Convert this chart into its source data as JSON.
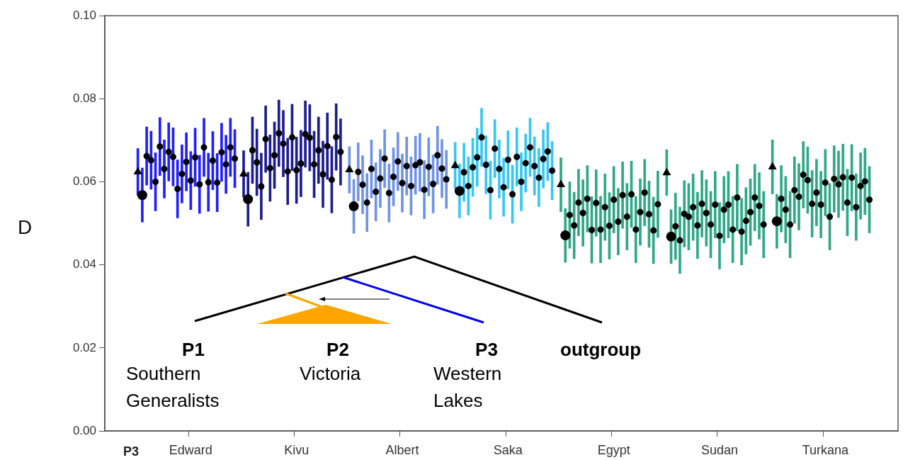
{
  "chart_data": {
    "type": "scatter",
    "xlabel": "P3",
    "ylabel": "D",
    "categories": [
      null,
      null,
      null,
      null,
      null,
      null,
      null,
      null,
      null,
      null,
      null,
      null,
      null,
      null,
      null,
      null,
      null,
      null,
      null,
      "Edward",
      null,
      null,
      null,
      null,
      null,
      null,
      null,
      null,
      null,
      null,
      null,
      null,
      null,
      null,
      null,
      null,
      null,
      null,
      null,
      null,
      null,
      null,
      null,
      "Kivu",
      null,
      null,
      null,
      null,
      null,
      null,
      null,
      null,
      null,
      null,
      null,
      null,
      null,
      null,
      null,
      null,
      null,
      null,
      null,
      null,
      null,
      null,
      null,
      "Albert",
      null,
      null,
      null,
      null,
      null,
      null,
      null,
      null,
      null,
      null,
      null,
      null,
      null,
      null,
      null,
      null,
      null,
      null,
      null,
      null,
      null,
      null,
      null,
      "Saka",
      null,
      null,
      null,
      null,
      null,
      null,
      null,
      null,
      null,
      null,
      null,
      null,
      null,
      null,
      null,
      null,
      null,
      null,
      null,
      null,
      null,
      null,
      null,
      "Egypt",
      null,
      null,
      null,
      null,
      null,
      null,
      null,
      null,
      null,
      null,
      null,
      null,
      null,
      null,
      null,
      null,
      null,
      null,
      null,
      null,
      null,
      null,
      null,
      "Sudan",
      null,
      null,
      null,
      null,
      null,
      null,
      null,
      null,
      null,
      null,
      null,
      null,
      null,
      null,
      null,
      null,
      null,
      null,
      null,
      null,
      null,
      null,
      null,
      "Turkana",
      null,
      null,
      null,
      null,
      null,
      null,
      null,
      null,
      null,
      null,
      null,
      null,
      null,
      null,
      null,
      null
    ],
    "ylim": [
      0,
      0.1
    ],
    "yticks": [
      {
        "value": 0,
        "label": "0.00"
      },
      {
        "value": 0.02,
        "label": "0.02"
      },
      {
        "value": 0.04,
        "label": "0.04"
      },
      {
        "value": 0.06,
        "label": "0.06"
      },
      {
        "value": 0.08,
        "label": "0.08"
      },
      {
        "value": 0.1,
        "label": "0.10"
      }
    ],
    "grid": false,
    "legend": false,
    "marker": "circle",
    "series": [
      {
        "color": "#000000",
        "values": [
          null,
          null,
          null,
          null,
          null,
          null,
          null,
          null,
          null,
          0.0662,
          0.0652,
          0.06,
          0.0685,
          0.0631,
          0.0672,
          0.066,
          0.0583,
          0.0619,
          0.0648,
          0.0603,
          0.0659,
          0.0594,
          0.0683,
          0.0599,
          0.0651,
          0.0598,
          0.0671,
          0.0642,
          0.0683,
          0.0656,
          null,
          null,
          null,
          0.0676,
          0.0647,
          0.0589,
          0.0703,
          0.0633,
          0.0664,
          0.0717,
          0.0692,
          0.0625,
          0.0707,
          0.0628,
          0.0644,
          0.0715,
          0.0706,
          0.0642,
          0.0676,
          0.0618,
          0.0686,
          0.0605,
          0.0708,
          0.0672,
          null,
          null,
          null,
          0.0624,
          0.0593,
          0.055,
          0.0631,
          0.0576,
          0.0608,
          0.0656,
          0.0573,
          0.0612,
          0.0649,
          0.0597,
          0.0638,
          0.059,
          0.064,
          0.0647,
          0.0581,
          0.0636,
          0.0595,
          0.0664,
          0.0632,
          0.0606,
          null,
          null,
          null,
          0.0623,
          0.059,
          0.0635,
          0.0659,
          0.0707,
          0.0641,
          0.058,
          0.068,
          0.0631,
          0.0587,
          0.0653,
          0.057,
          0.066,
          0.06,
          0.0645,
          0.0683,
          0.0638,
          0.061,
          0.0655,
          0.0673,
          0.0627,
          null,
          null,
          null,
          0.052,
          0.0495,
          0.055,
          0.0525,
          0.0559,
          0.0484,
          0.0549,
          0.0485,
          0.0539,
          0.0494,
          0.0557,
          0.0504,
          0.0568,
          0.0516,
          0.057,
          0.0485,
          0.0527,
          0.0574,
          0.0522,
          0.0483,
          0.0546,
          null,
          null,
          null,
          0.0493,
          0.0459,
          0.0523,
          0.0516,
          0.0539,
          0.0495,
          0.0547,
          0.0525,
          0.0497,
          0.0545,
          0.047,
          0.0533,
          0.0545,
          0.0485,
          0.0562,
          0.048,
          0.0506,
          0.0527,
          0.0562,
          0.0542,
          0.0497,
          null,
          null,
          null,
          0.0559,
          0.0533,
          0.0497,
          0.058,
          0.0564,
          0.0617,
          0.0604,
          0.0547,
          0.0574,
          0.0545,
          0.0598,
          0.0516,
          0.0607,
          0.0594,
          0.0611,
          0.055,
          0.061,
          0.0539,
          0.059,
          0.0601,
          0.0557,
          null,
          null,
          null,
          null,
          null,
          null
        ]
      },
      {
        "color": "#000000",
        "marker": "triangle",
        "values": [
          null,
          null,
          null,
          null,
          null,
          null,
          null,
          0.0624,
          null,
          null,
          null,
          null,
          null,
          null,
          null,
          null,
          null,
          null,
          null,
          null,
          null,
          null,
          null,
          null,
          null,
          null,
          null,
          null,
          null,
          null,
          null,
          0.0619,
          null,
          null,
          null,
          null,
          null,
          null,
          null,
          null,
          null,
          null,
          null,
          null,
          null,
          null,
          null,
          null,
          null,
          null,
          null,
          null,
          null,
          null,
          null,
          0.0629,
          null,
          null,
          null,
          null,
          null,
          null,
          null,
          null,
          null,
          null,
          null,
          null,
          null,
          null,
          null,
          null,
          null,
          null,
          null,
          null,
          null,
          null,
          null,
          0.0639,
          null,
          null,
          null,
          null,
          null,
          null,
          null,
          null,
          null,
          null,
          null,
          null,
          null,
          null,
          null,
          null,
          null,
          null,
          null,
          null,
          null,
          null,
          null,
          0.0593,
          null,
          null,
          null,
          null,
          null,
          null,
          null,
          null,
          null,
          null,
          null,
          null,
          null,
          null,
          null,
          null,
          null,
          null,
          null,
          null,
          null,
          null,
          null,
          0.0622,
          null,
          null,
          null,
          null,
          null,
          null,
          null,
          null,
          null,
          null,
          null,
          null,
          null,
          null,
          null,
          null,
          null,
          null,
          null,
          null,
          null,
          null,
          null,
          0.0636,
          null,
          null,
          null,
          null,
          null,
          null,
          null,
          null,
          null,
          null,
          null,
          null,
          null,
          null,
          null,
          null,
          null,
          null,
          null,
          null,
          null,
          null,
          null,
          null,
          null,
          null,
          null,
          null
        ]
      },
      {
        "color": "#000000",
        "marker": "circle",
        "values": [
          null,
          null,
          null,
          null,
          null,
          null,
          null,
          null,
          0.0568,
          null,
          null,
          null,
          null,
          null,
          null,
          null,
          null,
          null,
          null,
          null,
          null,
          null,
          null,
          null,
          null,
          null,
          null,
          null,
          null,
          null,
          null,
          null,
          0.0558,
          null,
          null,
          null,
          null,
          null,
          null,
          null,
          null,
          null,
          null,
          null,
          null,
          null,
          null,
          null,
          null,
          null,
          null,
          null,
          null,
          null,
          null,
          null,
          0.0541,
          null,
          null,
          null,
          null,
          null,
          null,
          null,
          null,
          null,
          null,
          null,
          null,
          null,
          null,
          null,
          null,
          null,
          null,
          null,
          null,
          null,
          null,
          null,
          0.0578,
          null,
          null,
          null,
          null,
          null,
          null,
          null,
          null,
          null,
          null,
          null,
          null,
          null,
          null,
          null,
          null,
          null,
          null,
          null,
          null,
          null,
          null,
          null,
          0.0471,
          null,
          null,
          null,
          null,
          null,
          null,
          null,
          null,
          null,
          null,
          null,
          null,
          null,
          null,
          null,
          null,
          null,
          null,
          null,
          null,
          null,
          null,
          null,
          0.0468,
          null,
          null,
          null,
          null,
          null,
          null,
          null,
          null,
          null,
          null,
          null,
          null,
          null,
          null,
          null,
          null,
          null,
          null,
          null,
          null,
          null,
          null,
          null,
          0.0505,
          null,
          null,
          null,
          null,
          null,
          null,
          null,
          null,
          null,
          null,
          null,
          null,
          null,
          null,
          null,
          null,
          null,
          null,
          null,
          null,
          null,
          null,
          null,
          null,
          null,
          null,
          null
        ]
      },
      {
        "type": "bar",
        "base": [
          null,
          null,
          null,
          null,
          null,
          null,
          null,
          0.0568,
          0.0503,
          0.0592,
          0.0582,
          0.053,
          0.0615,
          0.0561,
          0.0602,
          0.059,
          0.0513,
          0.0549,
          0.0578,
          0.0533,
          0.0589,
          0.0524,
          0.0613,
          0.0529,
          0.0581,
          0.0528,
          0.0601,
          0.0572,
          0.0613,
          0.0586,
          null,
          0.0563,
          0.0493,
          0.0596,
          0.0567,
          0.0509,
          0.0623,
          0.0553,
          0.0584,
          0.0637,
          0.0612,
          0.0545,
          0.0627,
          0.0548,
          0.0564,
          0.0635,
          0.0626,
          0.0562,
          0.0596,
          0.0538,
          0.0606,
          0.0525,
          0.0628,
          0.0592,
          null,
          0.0573,
          0.0476,
          0.0554,
          0.0523,
          0.048,
          0.0561,
          0.0506,
          0.0538,
          0.0586,
          0.0503,
          0.0542,
          0.0579,
          0.0527,
          0.0568,
          0.052,
          0.057,
          0.0577,
          0.0511,
          0.0566,
          0.0525,
          0.0594,
          0.0562,
          0.0536,
          null,
          0.0583,
          0.0513,
          0.0553,
          0.052,
          0.0565,
          0.0589,
          0.0637,
          0.0571,
          0.051,
          0.061,
          0.0561,
          0.0517,
          0.0583,
          0.05,
          0.059,
          0.053,
          0.0575,
          0.0613,
          0.0568,
          0.054,
          0.0585,
          0.0603,
          0.0557,
          null,
          0.0528,
          0.0406,
          0.044,
          0.0415,
          0.047,
          0.0445,
          0.0479,
          0.0404,
          0.0469,
          0.0405,
          0.0459,
          0.0414,
          0.0477,
          0.0424,
          0.0488,
          0.0436,
          0.049,
          0.0405,
          0.0447,
          0.0494,
          0.0442,
          0.0403,
          0.0466,
          null,
          0.0567,
          0.0403,
          0.0413,
          0.0379,
          0.0443,
          0.0436,
          0.0459,
          0.0415,
          0.0467,
          0.0445,
          0.0417,
          0.0465,
          0.039,
          0.0453,
          0.0465,
          0.0405,
          0.0482,
          0.04,
          0.0426,
          0.0447,
          0.0482,
          0.0462,
          0.0417,
          null,
          0.0571,
          0.044,
          0.0479,
          0.0453,
          0.0417,
          0.05,
          0.0484,
          0.0537,
          0.0524,
          0.0467,
          0.0494,
          0.0465,
          0.0518,
          0.0436,
          0.0527,
          0.0514,
          0.0531,
          0.047,
          0.053,
          0.0459,
          0.051,
          0.0521,
          0.0477,
          null,
          null,
          null,
          null,
          null,
          null
        ],
        "values": [
          null,
          null,
          null,
          null,
          null,
          null,
          null,
          0.0112,
          0.013,
          0.014,
          0.014,
          0.014,
          0.014,
          0.014,
          0.014,
          0.014,
          0.014,
          0.014,
          0.014,
          0.014,
          0.014,
          0.014,
          0.014,
          0.014,
          0.014,
          0.014,
          0.014,
          0.014,
          0.014,
          0.014,
          null,
          0.0112,
          0.013,
          0.016,
          0.016,
          0.016,
          0.016,
          0.016,
          0.016,
          0.016,
          0.016,
          0.016,
          0.016,
          0.016,
          0.016,
          0.016,
          0.016,
          0.016,
          0.016,
          0.016,
          0.016,
          0.016,
          0.016,
          0.016,
          null,
          0.0112,
          0.013,
          0.014,
          0.014,
          0.014,
          0.014,
          0.014,
          0.014,
          0.014,
          0.014,
          0.014,
          0.014,
          0.014,
          0.014,
          0.014,
          0.014,
          0.014,
          0.014,
          0.014,
          0.014,
          0.014,
          0.014,
          0.014,
          null,
          0.0112,
          0.013,
          0.014,
          0.014,
          0.014,
          0.014,
          0.014,
          0.014,
          0.014,
          0.014,
          0.014,
          0.014,
          0.014,
          0.014,
          0.014,
          0.014,
          0.014,
          0.014,
          0.014,
          0.014,
          0.014,
          0.014,
          0.014,
          null,
          0.013,
          0.013,
          0.016,
          0.016,
          0.016,
          0.016,
          0.016,
          0.016,
          0.016,
          0.016,
          0.016,
          0.016,
          0.016,
          0.016,
          0.016,
          0.016,
          0.016,
          0.016,
          0.016,
          0.016,
          0.016,
          0.016,
          0.016,
          null,
          0.011,
          0.013,
          0.016,
          0.016,
          0.016,
          0.016,
          0.016,
          0.016,
          0.016,
          0.016,
          0.016,
          0.016,
          0.016,
          0.016,
          0.016,
          0.016,
          0.016,
          0.016,
          0.016,
          0.016,
          0.016,
          0.016,
          0.016,
          null,
          0.013,
          0.013,
          0.016,
          0.016,
          0.016,
          0.016,
          0.016,
          0.016,
          0.016,
          0.016,
          0.016,
          0.016,
          0.016,
          0.016,
          0.016,
          0.016,
          0.016,
          0.016,
          0.016,
          0.016,
          0.016,
          0.016,
          0.016,
          null,
          null,
          null,
          null,
          null,
          null
        ],
        "colors": [
          null,
          null,
          null,
          null,
          null,
          null,
          null,
          "#1f1fff",
          "#1f1fff",
          "#1f1fff",
          "#1f1fff",
          "#1f1fff",
          "#1f1fff",
          "#1f1fff",
          "#1f1fff",
          "#1f1fff",
          "#1f1fff",
          "#1f1fff",
          "#1f1fff",
          "#1f1fff",
          "#1f1fff",
          "#1f1fff",
          "#1f1fff",
          "#1f1fff",
          "#1f1fff",
          "#1f1fff",
          "#1f1fff",
          "#1f1fff",
          "#1f1fff",
          "#1f1fff",
          null,
          "#1c1c8f",
          "#1c1c8f",
          "#1c1c8f",
          "#1c1c8f",
          "#1c1c8f",
          "#1c1c8f",
          "#1c1c8f",
          "#1c1c8f",
          "#1c1c8f",
          "#1c1c8f",
          "#1c1c8f",
          "#1c1c8f",
          "#1c1c8f",
          "#1c1c8f",
          "#1c1c8f",
          "#1c1c8f",
          "#1c1c8f",
          "#1c1c8f",
          "#1c1c8f",
          "#1c1c8f",
          "#1c1c8f",
          "#1c1c8f",
          "#1c1c8f",
          null,
          "#6f93e8",
          "#6f93e8",
          "#6f93e8",
          "#6f93e8",
          "#6f93e8",
          "#6f93e8",
          "#6f93e8",
          "#6f93e8",
          "#6f93e8",
          "#6f93e8",
          "#6f93e8",
          "#6f93e8",
          "#6f93e8",
          "#6f93e8",
          "#6f93e8",
          "#6f93e8",
          "#6f93e8",
          "#6f93e8",
          "#6f93e8",
          "#6f93e8",
          "#6f93e8",
          "#6f93e8",
          "#6f93e8",
          null,
          "#38c6f4",
          "#38c6f4",
          "#38c6f4",
          "#38c6f4",
          "#38c6f4",
          "#38c6f4",
          "#38c6f4",
          "#38c6f4",
          "#38c6f4",
          "#38c6f4",
          "#38c6f4",
          "#38c6f4",
          "#38c6f4",
          "#38c6f4",
          "#38c6f4",
          "#38c6f4",
          "#38c6f4",
          "#38c6f4",
          "#38c6f4",
          "#38c6f4",
          "#38c6f4",
          "#38c6f4",
          "#38c6f4",
          null,
          "#2fa887",
          "#2fa887",
          "#2fa887",
          "#2fa887",
          "#2fa887",
          "#2fa887",
          "#2fa887",
          "#2fa887",
          "#2fa887",
          "#2fa887",
          "#2fa887",
          "#2fa887",
          "#2fa887",
          "#2fa887",
          "#2fa887",
          "#2fa887",
          "#2fa887",
          "#2fa887",
          "#2fa887",
          "#2fa887",
          "#2fa887",
          "#2fa887",
          "#2fa887",
          null,
          "#2fa887",
          "#2fa887",
          "#2fa887",
          "#2fa887",
          "#2fa887",
          "#2fa887",
          "#2fa887",
          "#2fa887",
          "#2fa887",
          "#2fa887",
          "#2fa887",
          "#2fa887",
          "#2fa887",
          "#2fa887",
          "#2fa887",
          "#2fa887",
          "#2fa887",
          "#2fa887",
          "#2fa887",
          "#2fa887",
          "#2fa887",
          "#2fa887",
          "#2fa887",
          null,
          "#2fa887",
          "#2fa887",
          "#2fa887",
          "#2fa887",
          "#2fa887",
          "#2fa887",
          "#2fa887",
          "#2fa887",
          "#2fa887",
          "#2fa887",
          "#2fa887",
          "#2fa887",
          "#2fa887",
          "#2fa887",
          "#2fa887",
          "#2fa887",
          "#2fa887",
          "#2fa887",
          "#2fa887",
          "#2fa887",
          "#2fa887",
          "#2fa887",
          "#2fa887",
          null,
          null,
          null,
          null,
          null,
          null
        ]
      }
    ],
    "annotations": [
      "P1",
      "Southern Generalists",
      "P2",
      "Victoria",
      "P3",
      "Western Lakes",
      "outgroup"
    ]
  }
}
